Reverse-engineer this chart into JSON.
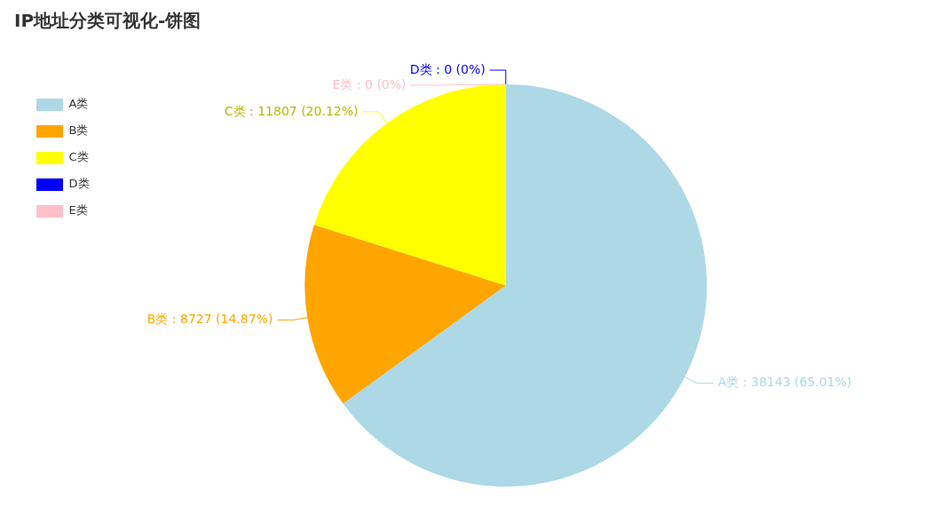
{
  "chart_data": {
    "type": "pie",
    "title": "IP地址分类可视化-饼图",
    "categories": [
      "A类",
      "B类",
      "C类",
      "D类",
      "E类"
    ],
    "values": [
      38143,
      8727,
      11807,
      0,
      0
    ],
    "colors": [
      "#add8e6",
      "#ffa500",
      "#ffff00",
      "#0000ff",
      "#ffc0cb"
    ],
    "value_labels": [
      "A类 : 38143 (65.01%)",
      "B类 : 8727 (14.87%)",
      "C类 : 11807 (20.12%)",
      "D类 : 0 (0%)",
      "E类 : 0 (0%)"
    ],
    "legend": "top left"
  }
}
